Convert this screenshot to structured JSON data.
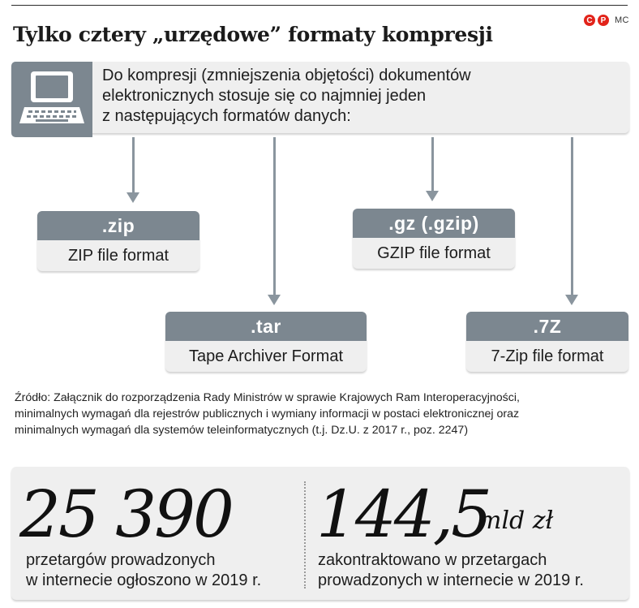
{
  "header": {
    "title": "Tylko cztery „urzędowe” formaty kompresji",
    "credit_c": "C",
    "credit_p": "P",
    "credit_author": "MC"
  },
  "intro": {
    "icon": "computer-icon",
    "text_line1": "Do kompresji (zmniejszenia objętości) dokumentów",
    "text_line2": "elektronicznych stosuje się co najmniej jeden",
    "text_line3": "z następujących formatów danych:"
  },
  "formats": [
    {
      "ext": ".zip",
      "name": "ZIP file format"
    },
    {
      "ext": ".tar",
      "name": "Tape Archiver Format"
    },
    {
      "ext": ".gz (.gzip)",
      "name": "GZIP file format"
    },
    {
      "ext": ".7Z",
      "name": "7-Zip file format"
    }
  ],
  "source": {
    "line1": "Źródło: Załącznik do rozporządzenia Rady Ministrów w sprawie Krajowych Ram Interoperacyjności,",
    "line2": "minimalnych wymagań dla rejestrów publicznych i wymiany informacji w postaci elektronicznej oraz",
    "line3": "minimalnych wymagań dla systemów teleinformatycznych (t.j. Dz.U. z 2017 r., poz. 2247)"
  },
  "stats": [
    {
      "value": "25 390",
      "unit": "",
      "desc_line1": "przetargów prowadzonych",
      "desc_line2": "w internecie ogłoszono w 2019 r."
    },
    {
      "value": "144,5",
      "unit": "mld zł",
      "desc_line1": "zakontraktowano w przetargach",
      "desc_line2": "prowadzonych w internecie w 2019 r."
    }
  ],
  "colors": {
    "header_gray": "#7c8790",
    "box_light": "#efefef",
    "arrow": "#8a959e",
    "logo_red": "#e2231a"
  }
}
